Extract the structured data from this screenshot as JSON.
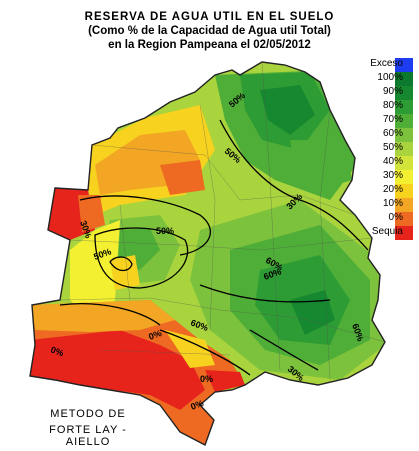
{
  "title": {
    "line1": "RESERVA DE AGUA UTIL EN EL SUELO",
    "line2": "(Como % de la Capacidad de Agua util Total)",
    "line3": "en la Region Pampeana el 02/05/2012"
  },
  "method": {
    "line1": "METODO DE",
    "line2": "FORTE LAY - AIELLO"
  },
  "legend": [
    {
      "label": "Exceso",
      "color": "#1f3df0"
    },
    {
      "label": "100%",
      "color": "#0b7a2e"
    },
    {
      "label": "90%",
      "color": "#16882f"
    },
    {
      "label": "80%",
      "color": "#2e9c34"
    },
    {
      "label": "70%",
      "color": "#4fae37"
    },
    {
      "label": "60%",
      "color": "#7cc23d"
    },
    {
      "label": "50%",
      "color": "#a9d43d"
    },
    {
      "label": "40%",
      "color": "#d2e33a"
    },
    {
      "label": "30%",
      "color": "#f2f030"
    },
    {
      "label": "20%",
      "color": "#f7d21f"
    },
    {
      "label": "10%",
      "color": "#f2a623"
    },
    {
      "label": "0%",
      "color": "#ee6a22"
    },
    {
      "label": "Sequia",
      "color": "#e6241c"
    }
  ],
  "contour_labels": [
    "50%",
    "50%",
    "30%",
    "50%",
    "50%",
    "30%",
    "60%",
    "60%",
    "60%",
    "0%",
    "0%",
    "0%",
    "60%",
    "0%",
    "30%"
  ]
}
